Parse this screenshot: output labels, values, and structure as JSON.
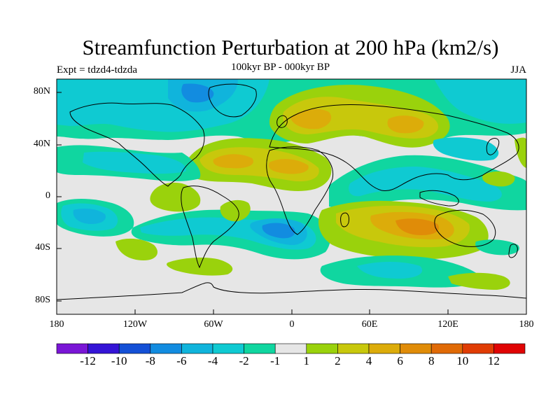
{
  "title": "Streamfunction Perturbation at 200 hPa (km2/s)",
  "experiment": "Expt = tdzd4-tdzda",
  "subtitle": "100kyr BP - 000kyr BP",
  "season": "JJA",
  "lat_labels": [
    "80N",
    "40N",
    "0",
    "40S",
    "80S"
  ],
  "lon_labels": [
    "180",
    "120W",
    "60W",
    "0",
    "60E",
    "120E",
    "180"
  ],
  "colorbar": {
    "labels": [
      "-12",
      "-10",
      "-8",
      "-6",
      "-4",
      "-2",
      "-1",
      "1",
      "2",
      "4",
      "6",
      "8",
      "10",
      "12"
    ],
    "colors": [
      "#7a16d6",
      "#3414d6",
      "#1450d6",
      "#128ce0",
      "#10b4dc",
      "#0fcad2",
      "#10d6a0",
      "#e6e6e6",
      "#9ad20c",
      "#c8c80c",
      "#dcac0a",
      "#e08c08",
      "#e06a06",
      "#e03c04",
      "#e00404"
    ]
  },
  "palette": {
    "n1": "#10d6a0",
    "n2": "#0fcad2",
    "n3": "#10b4dc",
    "n4": "#128ce0",
    "p1": "#9ad20c",
    "p2": "#c8c80c",
    "p3": "#dcac0a",
    "p4": "#e08c08",
    "background": "#e6e6e6",
    "coast": "#000000"
  }
}
